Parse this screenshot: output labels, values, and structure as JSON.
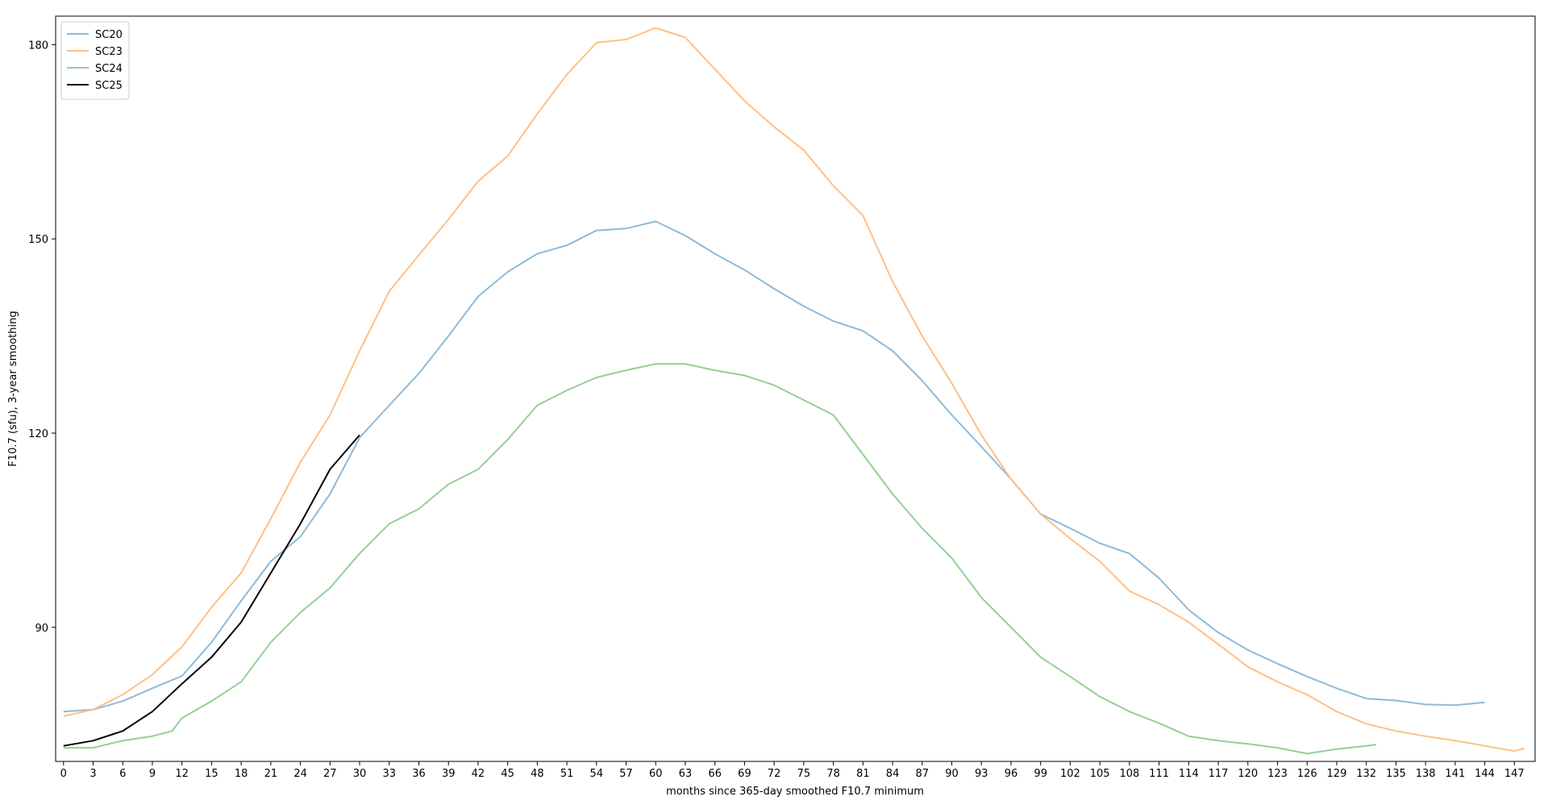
{
  "chart_data": {
    "type": "line",
    "xlabel": "months since 365-day smoothed F10.7 minimum",
    "ylabel": "F10.7 (sfu), 3-year smoothing",
    "xlim": [
      -0.8,
      149.1
    ],
    "ylim": [
      69.3,
      184.4
    ],
    "xticks": [
      0,
      3,
      6,
      9,
      12,
      15,
      18,
      21,
      24,
      27,
      30,
      33,
      36,
      39,
      42,
      45,
      48,
      51,
      54,
      57,
      60,
      63,
      66,
      69,
      72,
      75,
      78,
      81,
      84,
      87,
      90,
      93,
      96,
      99,
      102,
      105,
      108,
      111,
      114,
      117,
      120,
      123,
      126,
      129,
      132,
      135,
      138,
      141,
      144,
      147
    ],
    "yticks": [
      90,
      120,
      150,
      180
    ],
    "legend": "upper left",
    "series": [
      {
        "name": "SC20",
        "color": "#8ebad9",
        "x": [
          0,
          3,
          6,
          9,
          12,
          15,
          18,
          21,
          24,
          27,
          30,
          33,
          36,
          39,
          42,
          45,
          48,
          51,
          54,
          57,
          60,
          63,
          66,
          69,
          72,
          75,
          78,
          81,
          84,
          87,
          90,
          93,
          96,
          99,
          102,
          105,
          108,
          111,
          114,
          117,
          120,
          123,
          126,
          129,
          132,
          135,
          138,
          141,
          144
        ],
        "values": [
          77.0,
          77.3,
          78.6,
          80.6,
          82.5,
          87.7,
          94.1,
          100.2,
          104.0,
          110.6,
          119.3,
          124.3,
          129.2,
          135.0,
          141.1,
          144.9,
          147.7,
          149.0,
          151.3,
          151.6,
          152.7,
          150.5,
          147.7,
          145.2,
          142.3,
          139.6,
          137.3,
          135.8,
          132.7,
          128.1,
          122.8,
          117.9,
          112.9,
          107.5,
          105.3,
          103.0,
          101.4,
          97.6,
          92.7,
          89.2,
          86.5,
          84.4,
          82.4,
          80.6,
          79.0,
          78.7,
          78.1,
          78.0,
          78.4
        ]
      },
      {
        "name": "SC23",
        "color": "#ffbf86",
        "x": [
          0,
          3,
          6,
          9,
          12,
          15,
          18,
          21,
          24,
          27,
          30,
          33,
          36,
          39,
          42,
          45,
          48,
          51,
          54,
          57,
          60,
          63,
          66,
          69,
          72,
          75,
          78,
          81,
          84,
          87,
          90,
          93,
          96,
          99,
          102,
          105,
          108,
          111,
          114,
          117,
          120,
          123,
          126,
          129,
          132,
          135,
          138,
          141,
          144,
          147,
          148
        ],
        "values": [
          76.3,
          77.3,
          79.6,
          82.7,
          87.0,
          93.1,
          98.4,
          106.8,
          115.5,
          122.8,
          132.7,
          141.9,
          147.5,
          153.0,
          158.9,
          162.8,
          169.3,
          175.4,
          180.3,
          180.8,
          182.6,
          181.1,
          176.2,
          171.3,
          167.3,
          163.7,
          158.2,
          153.6,
          143.4,
          135.0,
          127.7,
          119.7,
          112.9,
          107.5,
          103.7,
          100.2,
          95.6,
          93.5,
          90.8,
          87.4,
          83.9,
          81.6,
          79.6,
          77.0,
          75.1,
          74.0,
          73.2,
          72.5,
          71.7,
          70.9,
          71.3
        ]
      },
      {
        "name": "SC24",
        "color": "#95cf95",
        "x": [
          0,
          3,
          6,
          9,
          11,
          12,
          15,
          18,
          21,
          24,
          27,
          30,
          33,
          36,
          39,
          42,
          45,
          48,
          51,
          54,
          57,
          60,
          63,
          66,
          69,
          72,
          75,
          78,
          81,
          84,
          87,
          90,
          93,
          96,
          99,
          102,
          105,
          108,
          111,
          114,
          117,
          120,
          123,
          126,
          129,
          132,
          133
        ],
        "values": [
          71.4,
          71.4,
          72.5,
          73.2,
          74.0,
          76.0,
          78.6,
          81.6,
          87.7,
          92.3,
          96.1,
          101.4,
          106.0,
          108.3,
          112.1,
          114.4,
          119.0,
          124.3,
          126.6,
          128.6,
          129.7,
          130.7,
          130.7,
          129.7,
          128.9,
          127.4,
          125.1,
          122.8,
          116.7,
          110.6,
          105.3,
          100.7,
          94.6,
          90.0,
          85.4,
          82.4,
          79.3,
          77.0,
          75.2,
          73.2,
          72.5,
          72.0,
          71.4,
          70.5,
          71.2,
          71.7,
          71.9
        ]
      },
      {
        "name": "SC25",
        "color": "#000000",
        "x": [
          0,
          3,
          6,
          9,
          12,
          15,
          18,
          21,
          24,
          27,
          30
        ],
        "values": [
          71.7,
          72.5,
          74.0,
          77.0,
          81.3,
          85.4,
          90.8,
          98.4,
          106.0,
          114.4,
          119.7
        ]
      }
    ]
  }
}
